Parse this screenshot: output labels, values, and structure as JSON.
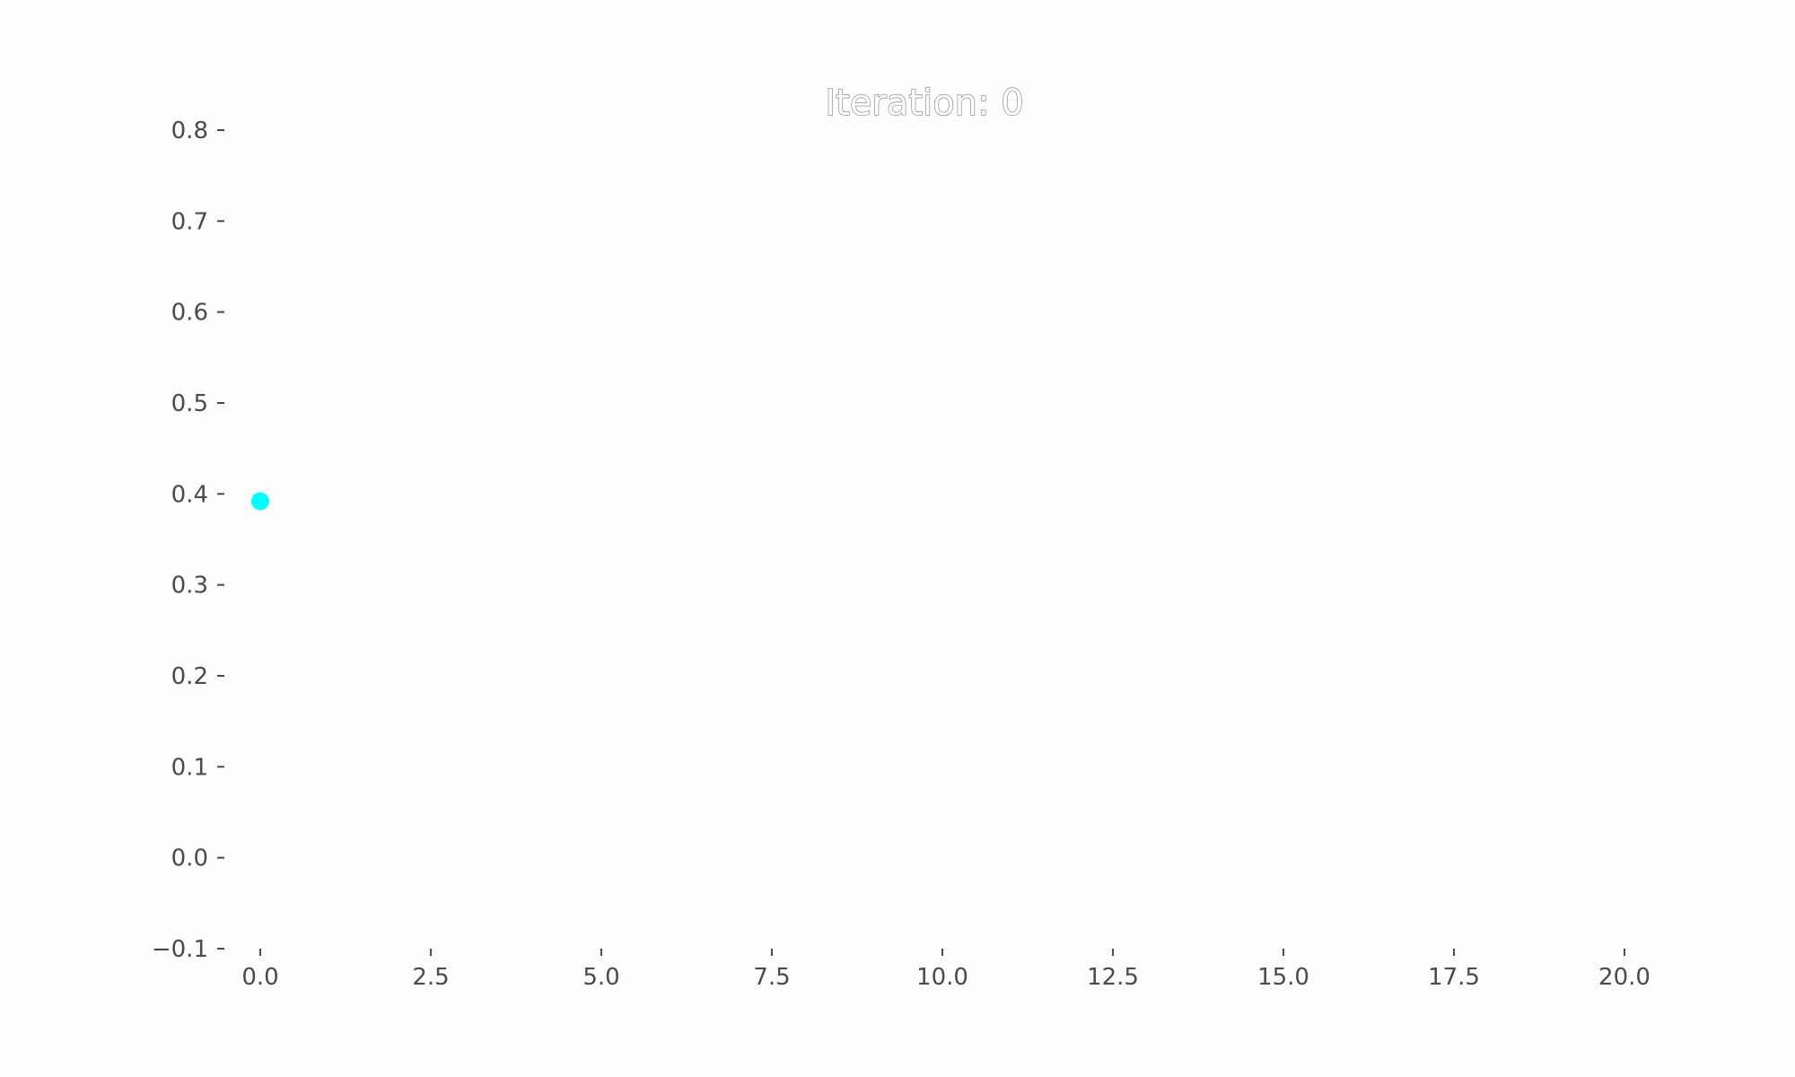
{
  "chart_data": {
    "type": "scatter",
    "title": "Iteration: 0",
    "xlabel": "",
    "ylabel": "",
    "xlim": [
      -0.6,
      21.0
    ],
    "ylim": [
      -0.1,
      0.8
    ],
    "x_ticks": [
      "0.0",
      "2.5",
      "5.0",
      "7.5",
      "10.0",
      "12.5",
      "15.0",
      "17.5",
      "20.0"
    ],
    "x_tick_values": [
      0,
      2.5,
      5,
      7.5,
      10,
      12.5,
      15,
      17.5,
      20
    ],
    "y_ticks": [
      "−0.1",
      "0.0",
      "0.1",
      "0.2",
      "0.3",
      "0.4",
      "0.5",
      "0.6",
      "0.7",
      "0.8"
    ],
    "y_tick_values": [
      -0.1,
      0,
      0.1,
      0.2,
      0.3,
      0.4,
      0.5,
      0.6,
      0.7,
      0.8
    ],
    "grid": false,
    "points": [
      {
        "x": 0,
        "y": 0.392
      }
    ],
    "point_color": "#00ffff"
  }
}
